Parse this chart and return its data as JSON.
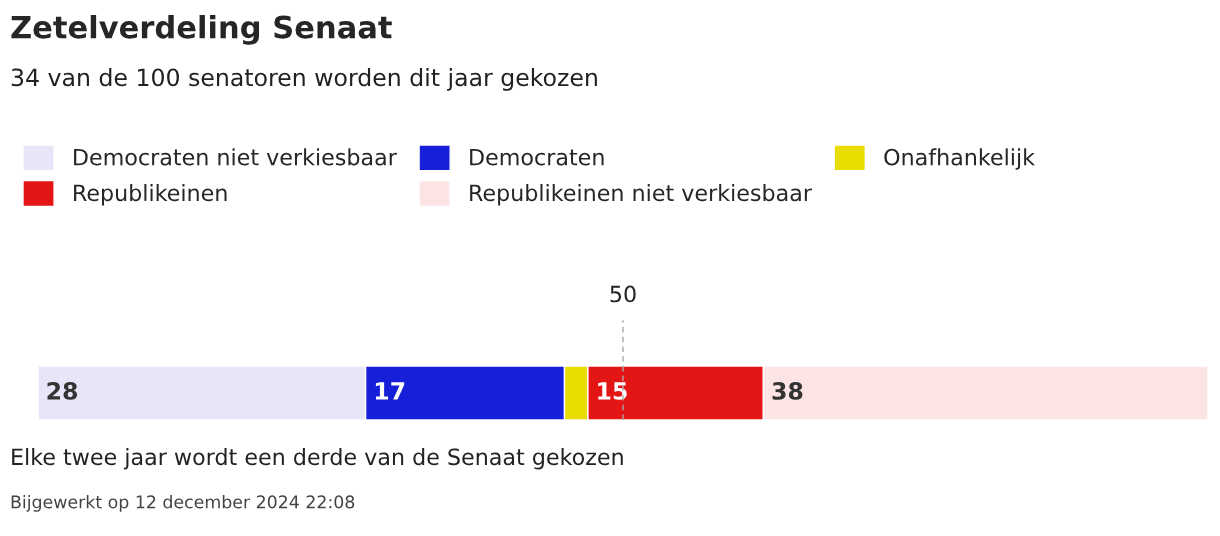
{
  "chart_data": {
    "type": "bar",
    "orientation": "horizontal",
    "stacked": true,
    "title": "Zetelverdeling Senaat",
    "subtitle": "34 van de 100 senatoren worden dit jaar gekozen",
    "categories": [
      null
    ],
    "series": [
      {
        "name": "Democraten niet verkiesbaar",
        "color": "#e6e6f8",
        "values": [
          28
        ],
        "value_labels": [
          "28"
        ]
      },
      {
        "name": "Democraten",
        "color": "#1520d8",
        "values": [
          17
        ],
        "value_labels": [
          "17"
        ]
      },
      {
        "name": "Onafhankelijk",
        "color": "#e8dc00",
        "values": [
          2
        ],
        "value_labels": [
          null
        ]
      },
      {
        "name": "Republikeinen",
        "color": "#e31515",
        "values": [
          15
        ],
        "value_labels": [
          "15"
        ]
      },
      {
        "name": "Republikeinen niet verkiesbaar",
        "color": "#fce4e4",
        "values": [
          38
        ],
        "value_labels": [
          "38"
        ]
      }
    ],
    "xlim": [
      0,
      100
    ],
    "ref_lines": [
      {
        "axis": "x",
        "value": 50,
        "label": "50",
        "line_style": "dashed",
        "color": "#aaaaaa"
      }
    ],
    "legend": "top",
    "tick_labels": false,
    "annotations": [
      "Elke twee jaar wordt een derde van de Senaat gekozen",
      "Bijgewerkt op 12 december 2024 22:08"
    ]
  }
}
